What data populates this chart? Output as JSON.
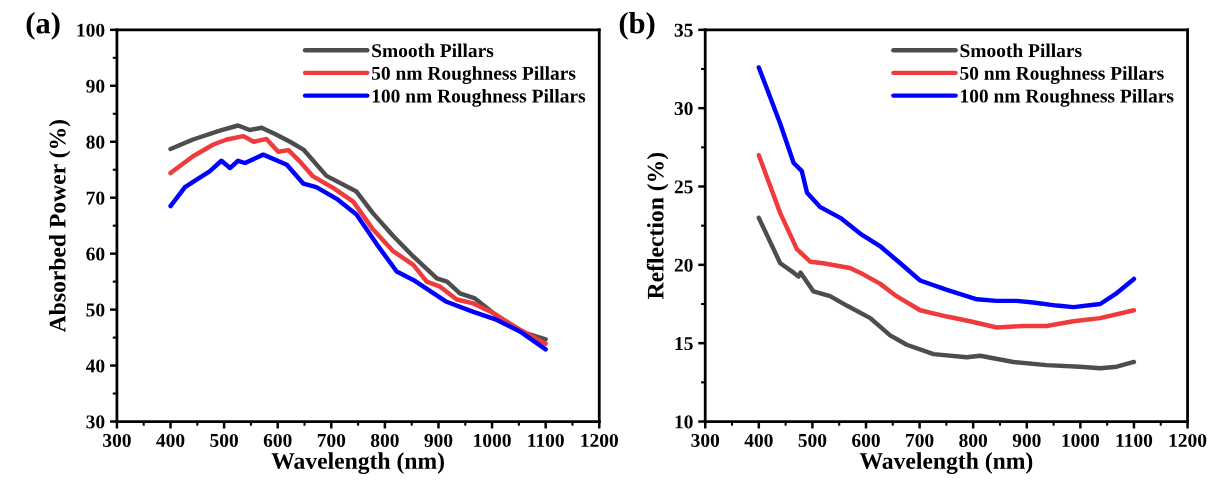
{
  "chart_data": [
    {
      "type": "line",
      "title": "(a)",
      "xlabel": "Wavelength (nm)",
      "ylabel": "Absorbed Power (%)",
      "xlim": [
        300,
        1200
      ],
      "xticks": [
        300,
        400,
        500,
        600,
        700,
        800,
        900,
        1000,
        1100,
        1200
      ],
      "ylim": [
        30,
        100
      ],
      "yticks": [
        30,
        40,
        50,
        60,
        70,
        80,
        90,
        100
      ],
      "legend": "top right",
      "grid": false,
      "marker": "none",
      "line_style": "solid",
      "series": [
        {
          "name": "Smooth Pillars",
          "color": "#4d4d4d",
          "x": [
            400,
            442,
            492,
            526,
            548,
            570,
            595,
            623,
            648,
            691,
            747,
            778,
            816,
            853,
            897,
            916,
            940,
            968,
            1002,
            1052,
            1100
          ],
          "values": [
            78.7,
            80.4,
            82.0,
            82.9,
            82.1,
            82.5,
            81.4,
            80.0,
            78.6,
            73.9,
            71.1,
            67.2,
            63.1,
            59.5,
            55.6,
            55.0,
            52.9,
            52.0,
            49.4,
            46.1,
            44.7
          ]
        },
        {
          "name": "50 nm Roughness Pillars",
          "color": "#ef3b3b",
          "x": [
            400,
            442,
            480,
            505,
            536,
            555,
            579,
            601,
            620,
            641,
            666,
            704,
            741,
            778,
            816,
            853,
            878,
            903,
            934,
            965,
            1002,
            1052,
            1100
          ],
          "values": [
            74.4,
            77.4,
            79.5,
            80.4,
            81.0,
            80.0,
            80.5,
            78.2,
            78.5,
            76.5,
            73.8,
            71.7,
            69.3,
            64.3,
            60.4,
            58.0,
            55.0,
            54.1,
            51.8,
            51.1,
            49.4,
            46.4,
            43.9
          ]
        },
        {
          "name": "100 nm Roughness Pillars",
          "color": "#0000ff",
          "x": [
            400,
            427,
            448,
            473,
            495,
            511,
            526,
            539,
            573,
            617,
            648,
            672,
            710,
            747,
            784,
            822,
            853,
            915,
            965,
            1008,
            1052,
            1100
          ],
          "values": [
            68.5,
            71.9,
            73.2,
            74.7,
            76.6,
            75.3,
            76.6,
            76.2,
            77.7,
            75.9,
            72.5,
            71.9,
            69.8,
            67.0,
            61.8,
            56.8,
            55.3,
            51.4,
            49.6,
            48.2,
            46.1,
            42.9
          ]
        }
      ]
    },
    {
      "type": "line",
      "title": "(b)",
      "xlabel": "Wavelength (nm)",
      "ylabel": "Reflection (%)",
      "xlim": [
        300,
        1200
      ],
      "xticks": [
        300,
        400,
        500,
        600,
        700,
        800,
        900,
        1000,
        1100,
        1200
      ],
      "ylim": [
        10,
        35
      ],
      "yticks": [
        10,
        15,
        20,
        25,
        30,
        35
      ],
      "legend": "top right",
      "grid": false,
      "marker": "none",
      "line_style": "solid",
      "series": [
        {
          "name": "Smooth Pillars",
          "color": "#4d4d4d",
          "x": [
            400,
            440,
            465,
            474,
            478,
            502,
            533,
            564,
            608,
            645,
            676,
            726,
            788,
            813,
            875,
            937,
            999,
            1037,
            1068,
            1100
          ],
          "values": [
            23.0,
            20.1,
            19.5,
            19.25,
            19.5,
            18.3,
            18.0,
            17.4,
            16.6,
            15.5,
            14.9,
            14.3,
            14.1,
            14.2,
            13.8,
            13.6,
            13.5,
            13.4,
            13.5,
            13.8
          ]
        },
        {
          "name": "50 nm Roughness Pillars",
          "color": "#ef3b3b",
          "x": [
            400,
            440,
            471,
            496,
            520,
            570,
            589,
            626,
            657,
            701,
            751,
            794,
            844,
            894,
            937,
            987,
            1037,
            1100
          ],
          "values": [
            27.0,
            23.3,
            21.0,
            20.2,
            20.1,
            19.8,
            19.5,
            18.8,
            18.0,
            17.1,
            16.7,
            16.4,
            16.0,
            16.1,
            16.1,
            16.4,
            16.6,
            17.1
          ]
        },
        {
          "name": "100 nm Roughness Pillars",
          "color": "#0000ff",
          "x": [
            400,
            440,
            465,
            480,
            490,
            514,
            552,
            589,
            626,
            664,
            701,
            751,
            807,
            844,
            881,
            912,
            956,
            987,
            1037,
            1068,
            1100
          ],
          "values": [
            32.6,
            29.0,
            26.5,
            26.0,
            24.6,
            23.7,
            23.0,
            22.0,
            21.2,
            20.1,
            19.0,
            18.4,
            17.8,
            17.7,
            17.7,
            17.6,
            17.4,
            17.3,
            17.5,
            18.2,
            19.1
          ]
        }
      ]
    }
  ]
}
